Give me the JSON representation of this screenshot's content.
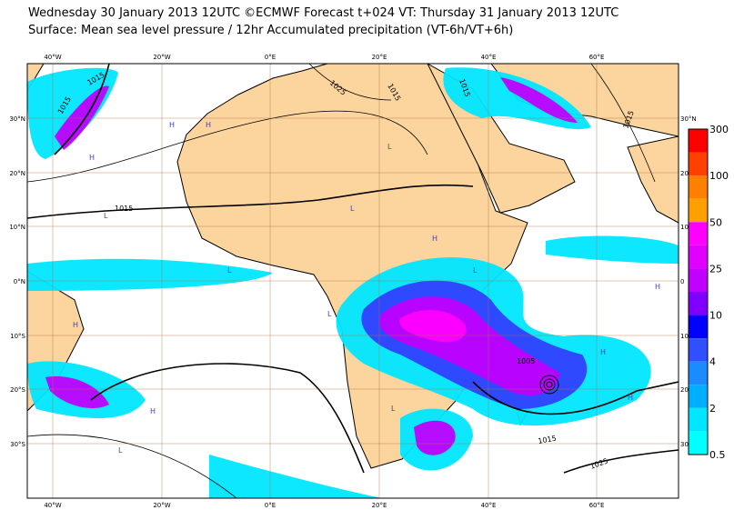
{
  "header": {
    "line1": "Wednesday 30 January 2013 12UTC ©ECMWF Forecast t+024 VT: Thursday 31 January 2013 12UTC",
    "line2": "Surface: Mean sea level pressure / 12hr Accumulated precipitation (VT-6h/VT+6h)"
  },
  "map": {
    "lon_labels": [
      "40°W",
      "20°W",
      "0°E",
      "20°E",
      "40°E",
      "60°E"
    ],
    "lat_labels_left": [
      "30°N",
      "20°N",
      "10°N",
      "0°N",
      "10°S",
      "20°S",
      "30°S"
    ],
    "lat_labels_right": [
      "30°N",
      "20",
      "10",
      "0",
      "10",
      "20",
      "30"
    ],
    "isobar_labels": [
      "1015",
      "1015",
      "1025",
      "1015",
      "1015",
      "1015",
      "1015",
      "1005",
      "1015",
      "1025"
    ],
    "pressure_centers": [
      "H",
      "H",
      "H",
      "L",
      "L",
      "L",
      "L",
      "H",
      "L",
      "H",
      "H",
      "L",
      "H",
      "H",
      "H",
      "L",
      "L"
    ]
  },
  "colorbar": {
    "labels": [
      "300",
      "100",
      "50",
      "25",
      "10",
      "4",
      "2",
      "0.5"
    ]
  }
}
